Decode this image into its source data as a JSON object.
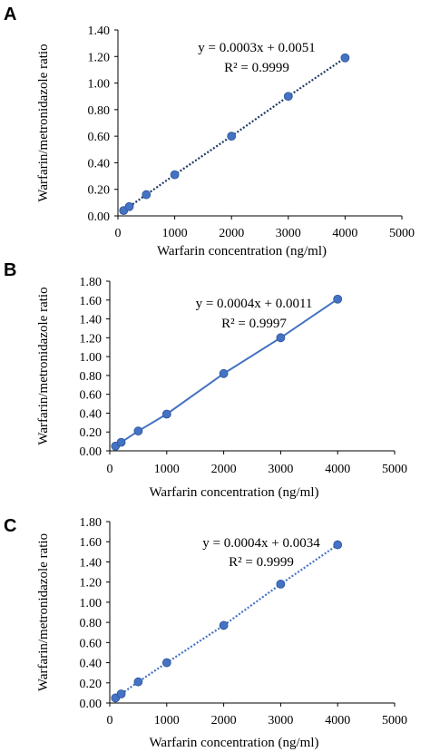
{
  "chart_data": [
    {
      "type": "scatter",
      "panel": "A",
      "xlabel": "Warfarin concentration (ng/ml)",
      "ylabel": "Warfarin/metronidazole ratio",
      "xlim": [
        0,
        5000
      ],
      "ylim": [
        0,
        1.4
      ],
      "x_ticks": [
        "0",
        "1000",
        "2000",
        "3000",
        "4000",
        "5000"
      ],
      "y_ticks": [
        "0.00",
        "0.20",
        "0.40",
        "0.60",
        "0.80",
        "1.00",
        "1.20",
        "1.40"
      ],
      "series": [
        {
          "x": [
            100,
            200,
            500,
            1000,
            2000,
            3000,
            4000
          ],
          "y": [
            0.04,
            0.07,
            0.16,
            0.31,
            0.6,
            0.9,
            1.19
          ]
        }
      ],
      "trendline": {
        "style": "dotted",
        "slope": 0.0003,
        "intercept": 0.0051
      },
      "equation": "y = 0.0003x + 0.0051",
      "r2": "R² = 0.9999",
      "color": "#4472c4",
      "line_color": "#1f3864"
    },
    {
      "type": "line",
      "panel": "B",
      "xlabel": "Warfarin concentration (ng/ml)",
      "ylabel": "Warfarin/metronidazole ratio",
      "xlim": [
        0,
        5000
      ],
      "ylim": [
        0,
        1.8
      ],
      "x_ticks": [
        "0",
        "1000",
        "2000",
        "3000",
        "4000",
        "5000"
      ],
      "y_ticks": [
        "0.00",
        "0.20",
        "0.40",
        "0.60",
        "0.80",
        "1.00",
        "1.20",
        "1.40",
        "1.60",
        "1.80"
      ],
      "series": [
        {
          "x": [
            100,
            200,
            500,
            1000,
            2000,
            3000,
            4000
          ],
          "y": [
            0.05,
            0.09,
            0.21,
            0.39,
            0.82,
            1.2,
            1.61
          ]
        }
      ],
      "trendline": {
        "style": "solid",
        "slope": 0.0004,
        "intercept": 0.0011
      },
      "equation": "y = 0.0004x + 0.0011",
      "r2": "R² = 0.9997",
      "color": "#4472c4",
      "line_color": "#4472c4"
    },
    {
      "type": "scatter",
      "panel": "C",
      "xlabel": "Warfarin concentration (ng/ml)",
      "ylabel": "Warfarin/metronidazole ratio",
      "xlim": [
        0,
        5000
      ],
      "ylim": [
        0,
        1.8
      ],
      "x_ticks": [
        "0",
        "1000",
        "2000",
        "3000",
        "4000",
        "5000"
      ],
      "y_ticks": [
        "0.00",
        "0.20",
        "0.40",
        "0.60",
        "0.80",
        "1.00",
        "1.20",
        "1.40",
        "1.60",
        "1.80"
      ],
      "series": [
        {
          "x": [
            100,
            200,
            500,
            1000,
            2000,
            3000,
            4000
          ],
          "y": [
            0.05,
            0.09,
            0.21,
            0.4,
            0.77,
            1.18,
            1.57
          ]
        }
      ],
      "trendline": {
        "style": "dotted",
        "slope": 0.0004,
        "intercept": 0.0034
      },
      "equation": "y = 0.0004x + 0.0034",
      "r2": "R² = 0.9999",
      "color": "#4472c4",
      "line_color": "#4472c4"
    }
  ]
}
